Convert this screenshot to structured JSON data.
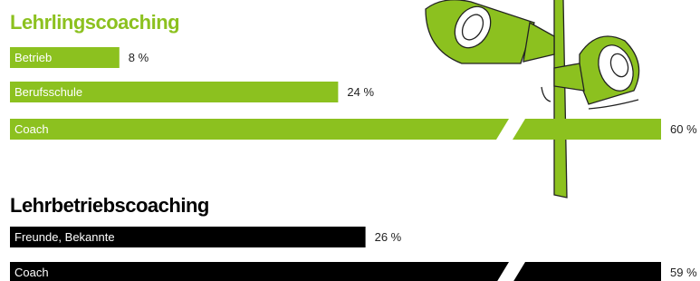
{
  "chart_data": [
    {
      "type": "bar",
      "title": "Lehrlingscoaching",
      "color": "#8cc11f",
      "categories": [
        "Betrieb",
        "Berufsschule",
        "Coach"
      ],
      "values": [
        8,
        24,
        60
      ],
      "value_labels": [
        "8 %",
        "24 %",
        "60 %"
      ]
    },
    {
      "type": "bar",
      "title": "Lehrbetriebscoaching",
      "color": "#000000",
      "categories": [
        "Freunde, Bekannte",
        "Coach"
      ],
      "values": [
        26,
        59
      ],
      "value_labels": [
        "26 %",
        "59 %"
      ]
    }
  ]
}
